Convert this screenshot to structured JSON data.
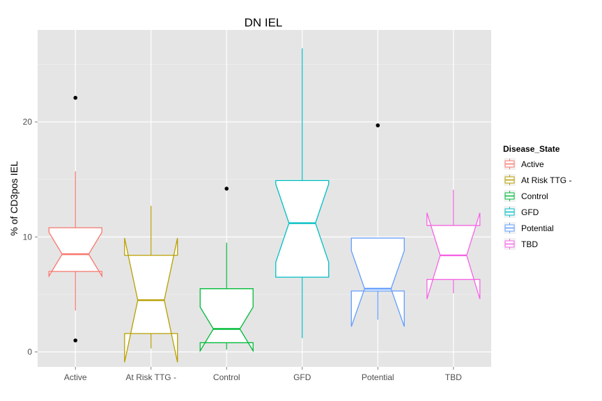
{
  "chart_data": {
    "type": "boxplot",
    "notched": true,
    "title": "DN IEL",
    "xlabel": "",
    "ylabel": "% of CD3pos IEL",
    "ylim": [
      -1.3,
      28.0
    ],
    "yticks": [
      0,
      10,
      20
    ],
    "grid": true,
    "legend": {
      "title": "Disease_State",
      "position": "right"
    },
    "categories": [
      "Active",
      "At Risk TTG -",
      "Control",
      "GFD",
      "Potential",
      "TBD"
    ],
    "series": [
      {
        "name": "Active",
        "color": "#F8766D",
        "whisker_low": 3.6,
        "q1": 7.0,
        "median": 8.5,
        "q3": 10.8,
        "whisker_high": 15.7,
        "notch_low": 6.6,
        "notch_high": 10.4,
        "outliers": [
          22.1,
          1.0
        ]
      },
      {
        "name": "At Risk TTG -",
        "color": "#B79F00",
        "whisker_low": 0.3,
        "q1": 1.6,
        "median": 4.5,
        "q3": 8.4,
        "whisker_high": 12.7,
        "notch_low": -0.9,
        "notch_high": 9.9,
        "outliers": []
      },
      {
        "name": "Control",
        "color": "#00BA38",
        "whisker_low": 0.2,
        "q1": 0.8,
        "median": 2.0,
        "q3": 5.5,
        "whisker_high": 9.5,
        "notch_low": 0.1,
        "notch_high": 3.9,
        "outliers": [
          14.2
        ]
      },
      {
        "name": "GFD",
        "color": "#00BFC4",
        "whisker_low": 1.2,
        "q1": 6.5,
        "median": 11.2,
        "q3": 14.9,
        "whisker_high": 26.4,
        "notch_low": 7.8,
        "notch_high": 14.6,
        "outliers": []
      },
      {
        "name": "Potential",
        "color": "#619CFF",
        "whisker_low": 2.8,
        "q1": 5.3,
        "median": 5.5,
        "q3": 9.9,
        "whisker_high": 9.9,
        "notch_low": 2.2,
        "notch_high": 8.8,
        "outliers": [
          19.7
        ]
      },
      {
        "name": "TBD",
        "color": "#F564E3",
        "whisker_low": 5.1,
        "q1": 6.3,
        "median": 8.4,
        "q3": 11.0,
        "whisker_high": 14.1,
        "notch_low": 4.6,
        "notch_high": 12.1,
        "outliers": []
      }
    ]
  }
}
